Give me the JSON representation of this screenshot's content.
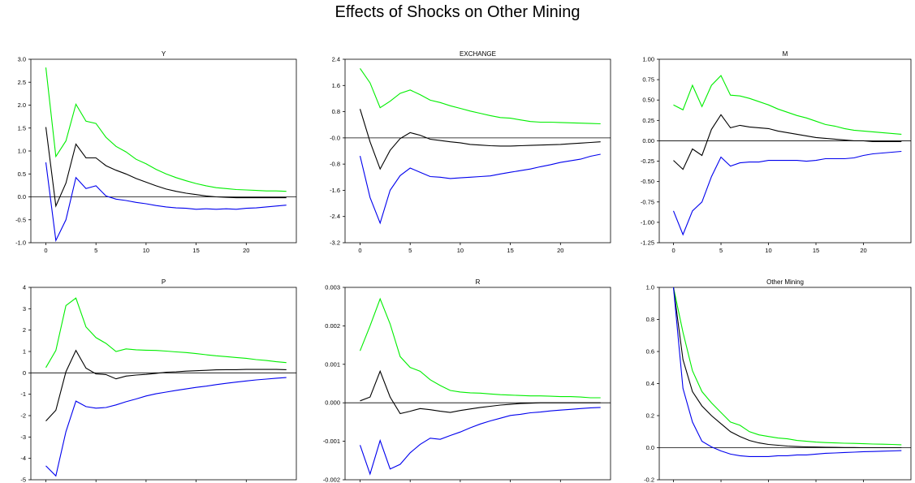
{
  "title": "Effects of Shocks on Other Mining",
  "chart_data": [
    {
      "type": "line",
      "title": "Y",
      "x": [
        0,
        1,
        2,
        3,
        4,
        5,
        6,
        7,
        8,
        9,
        10,
        11,
        12,
        13,
        14,
        15,
        16,
        17,
        18,
        19,
        20,
        21,
        22,
        23,
        24
      ],
      "xticks": [
        0,
        5,
        10,
        15,
        20
      ],
      "xlim": [
        -1.5,
        25
      ],
      "ylim": [
        -1.0,
        3.0
      ],
      "yticks": [
        -1.0,
        -0.5,
        0.0,
        0.5,
        1.0,
        1.5,
        2.0,
        2.5,
        3.0
      ],
      "ytick_labels": [
        "-1.0",
        "-0.5",
        "0.0",
        "0.5",
        "1.0",
        "1.5",
        "2.0",
        "2.5",
        "3.0"
      ],
      "zero_line": 0,
      "series": [
        {
          "color": "#00ee00",
          "values": [
            2.82,
            0.88,
            1.22,
            2.02,
            1.65,
            1.6,
            1.3,
            1.1,
            0.98,
            0.82,
            0.72,
            0.6,
            0.5,
            0.42,
            0.35,
            0.29,
            0.24,
            0.2,
            0.18,
            0.16,
            0.15,
            0.14,
            0.13,
            0.13,
            0.12
          ]
        },
        {
          "color": "#000000",
          "values": [
            1.52,
            -0.2,
            0.3,
            1.15,
            0.85,
            0.85,
            0.68,
            0.58,
            0.5,
            0.4,
            0.32,
            0.24,
            0.17,
            0.12,
            0.08,
            0.05,
            0.02,
            0.0,
            -0.01,
            -0.02,
            -0.02,
            -0.02,
            -0.02,
            -0.02,
            -0.02
          ]
        },
        {
          "color": "#0000ee",
          "values": [
            0.75,
            -0.95,
            -0.5,
            0.42,
            0.18,
            0.24,
            0.02,
            -0.05,
            -0.08,
            -0.12,
            -0.15,
            -0.19,
            -0.22,
            -0.24,
            -0.25,
            -0.27,
            -0.26,
            -0.27,
            -0.26,
            -0.27,
            -0.25,
            -0.24,
            -0.22,
            -0.2,
            -0.18
          ]
        }
      ]
    },
    {
      "type": "line",
      "title": "EXCHANGE",
      "x": [
        0,
        1,
        2,
        3,
        4,
        5,
        6,
        7,
        8,
        9,
        10,
        11,
        12,
        13,
        14,
        15,
        16,
        17,
        18,
        19,
        20,
        21,
        22,
        23,
        24
      ],
      "xticks": [
        0,
        5,
        10,
        15,
        20
      ],
      "xlim": [
        -1.5,
        25
      ],
      "ylim": [
        -3.2,
        2.4
      ],
      "yticks": [
        -3.2,
        -2.4,
        -1.6,
        -0.8,
        0.0,
        0.8,
        1.6,
        2.4
      ],
      "ytick_labels": [
        "-3.2",
        "-2.4",
        "-1.6",
        "-0.8",
        "-0.0",
        "0.8",
        "1.6",
        "2.4"
      ],
      "zero_line": 0,
      "series": [
        {
          "color": "#00ee00",
          "values": [
            2.12,
            1.68,
            0.92,
            1.12,
            1.36,
            1.46,
            1.32,
            1.15,
            1.08,
            0.98,
            0.9,
            0.82,
            0.75,
            0.68,
            0.62,
            0.6,
            0.55,
            0.5,
            0.48,
            0.48,
            0.47,
            0.46,
            0.45,
            0.44,
            0.43
          ]
        },
        {
          "color": "#000000",
          "values": [
            0.88,
            -0.12,
            -0.95,
            -0.38,
            -0.02,
            0.16,
            0.08,
            -0.04,
            -0.08,
            -0.12,
            -0.15,
            -0.2,
            -0.22,
            -0.24,
            -0.25,
            -0.25,
            -0.24,
            -0.23,
            -0.22,
            -0.21,
            -0.2,
            -0.18,
            -0.16,
            -0.14,
            -0.12
          ]
        },
        {
          "color": "#0000ee",
          "values": [
            -0.55,
            -1.82,
            -2.6,
            -1.6,
            -1.15,
            -0.92,
            -1.05,
            -1.18,
            -1.2,
            -1.24,
            -1.22,
            -1.2,
            -1.18,
            -1.16,
            -1.1,
            -1.05,
            -1.0,
            -0.95,
            -0.88,
            -0.82,
            -0.75,
            -0.7,
            -0.65,
            -0.56,
            -0.5
          ]
        }
      ]
    },
    {
      "type": "line",
      "title": "M",
      "x": [
        0,
        1,
        2,
        3,
        4,
        5,
        6,
        7,
        8,
        9,
        10,
        11,
        12,
        13,
        14,
        15,
        16,
        17,
        18,
        19,
        20,
        21,
        22,
        23,
        24
      ],
      "xticks": [
        0,
        5,
        10,
        15,
        20
      ],
      "xlim": [
        -1.5,
        25
      ],
      "ylim": [
        -1.25,
        1.0
      ],
      "yticks": [
        -1.25,
        -1.0,
        -0.75,
        -0.5,
        -0.25,
        0.0,
        0.25,
        0.5,
        0.75,
        1.0
      ],
      "ytick_labels": [
        "-1.25",
        "-1.00",
        "-0.75",
        "-0.50",
        "-0.25",
        "0.00",
        "0.25",
        "0.50",
        "0.75",
        "1.00"
      ],
      "zero_line": 0,
      "series": [
        {
          "color": "#00ee00",
          "values": [
            0.44,
            0.38,
            0.68,
            0.42,
            0.68,
            0.8,
            0.56,
            0.55,
            0.52,
            0.48,
            0.44,
            0.39,
            0.35,
            0.31,
            0.28,
            0.24,
            0.2,
            0.18,
            0.15,
            0.13,
            0.12,
            0.11,
            0.1,
            0.09,
            0.08
          ]
        },
        {
          "color": "#000000",
          "values": [
            -0.24,
            -0.35,
            -0.1,
            -0.18,
            0.14,
            0.32,
            0.16,
            0.19,
            0.17,
            0.16,
            0.15,
            0.12,
            0.1,
            0.08,
            0.06,
            0.04,
            0.03,
            0.02,
            0.01,
            0.0,
            0.0,
            -0.01,
            -0.01,
            -0.01,
            -0.01
          ]
        },
        {
          "color": "#0000ee",
          "values": [
            -0.86,
            -1.15,
            -0.86,
            -0.75,
            -0.44,
            -0.2,
            -0.31,
            -0.27,
            -0.26,
            -0.26,
            -0.24,
            -0.24,
            -0.24,
            -0.24,
            -0.25,
            -0.24,
            -0.22,
            -0.22,
            -0.22,
            -0.21,
            -0.18,
            -0.16,
            -0.15,
            -0.14,
            -0.13
          ]
        }
      ]
    },
    {
      "type": "line",
      "title": "P",
      "x": [
        0,
        1,
        2,
        3,
        4,
        5,
        6,
        7,
        8,
        9,
        10,
        11,
        12,
        13,
        14,
        15,
        16,
        17,
        18,
        19,
        20,
        21,
        22,
        23,
        24
      ],
      "xticks": [
        0,
        5,
        10,
        15,
        20
      ],
      "xlim": [
        -1.5,
        25
      ],
      "ylim": [
        -5,
        4
      ],
      "yticks": [
        -5,
        -4,
        -3,
        -2,
        -1,
        0,
        1,
        2,
        3,
        4
      ],
      "ytick_labels": [
        "-5",
        "-4",
        "-3",
        "-2",
        "-1",
        "0",
        "1",
        "2",
        "3",
        "4"
      ],
      "zero_line": 0,
      "series": [
        {
          "color": "#00ee00",
          "values": [
            0.25,
            1.05,
            3.15,
            3.5,
            2.15,
            1.65,
            1.38,
            1.0,
            1.12,
            1.08,
            1.06,
            1.05,
            1.02,
            0.98,
            0.95,
            0.9,
            0.85,
            0.8,
            0.76,
            0.72,
            0.68,
            0.62,
            0.58,
            0.52,
            0.48
          ]
        },
        {
          "color": "#000000",
          "values": [
            -2.25,
            -1.75,
            0.05,
            1.05,
            0.22,
            -0.05,
            -0.08,
            -0.28,
            -0.15,
            -0.1,
            -0.07,
            -0.02,
            0.03,
            0.05,
            0.08,
            0.1,
            0.12,
            0.14,
            0.15,
            0.15,
            0.16,
            0.16,
            0.16,
            0.16,
            0.15
          ]
        },
        {
          "color": "#0000ee",
          "values": [
            -4.35,
            -4.82,
            -2.75,
            -1.32,
            -1.58,
            -1.65,
            -1.62,
            -1.5,
            -1.35,
            -1.22,
            -1.08,
            -0.98,
            -0.9,
            -0.82,
            -0.75,
            -0.68,
            -0.62,
            -0.55,
            -0.49,
            -0.43,
            -0.38,
            -0.33,
            -0.29,
            -0.25,
            -0.22
          ]
        }
      ]
    },
    {
      "type": "line",
      "title": "R",
      "x": [
        0,
        1,
        2,
        3,
        4,
        5,
        6,
        7,
        8,
        9,
        10,
        11,
        12,
        13,
        14,
        15,
        16,
        17,
        18,
        19,
        20,
        21,
        22,
        23,
        24
      ],
      "xticks": [
        0,
        5,
        10,
        15,
        20
      ],
      "xlim": [
        -1.5,
        25
      ],
      "ylim": [
        -0.002,
        0.003
      ],
      "yticks": [
        -0.002,
        -0.001,
        0.0,
        0.001,
        0.002,
        0.003
      ],
      "ytick_labels": [
        "-0.002",
        "-0.001",
        "0.000",
        "0.001",
        "0.002",
        "0.003"
      ],
      "zero_line": 0,
      "series": [
        {
          "color": "#00ee00",
          "values": [
            0.00135,
            0.002,
            0.0027,
            0.00205,
            0.0012,
            0.00092,
            0.00082,
            0.0006,
            0.00045,
            0.00032,
            0.00028,
            0.00026,
            0.00025,
            0.00023,
            0.00021,
            0.0002,
            0.00019,
            0.00018,
            0.00018,
            0.00017,
            0.00016,
            0.00016,
            0.00015,
            0.00013,
            0.00013
          ]
        },
        {
          "color": "#000000",
          "values": [
            5e-05,
            0.00015,
            0.00082,
            0.00015,
            -0.00028,
            -0.00022,
            -0.00015,
            -0.00018,
            -0.00022,
            -0.00025,
            -0.0002,
            -0.00016,
            -0.00012,
            -9e-05,
            -6e-05,
            -4e-05,
            -2e-05,
            -1e-05,
            0.0,
            0.0,
            0.0,
            0.0,
            0.0,
            0.0,
            0.0
          ]
        },
        {
          "color": "#0000ee",
          "values": [
            -0.0011,
            -0.00185,
            -0.00098,
            -0.00172,
            -0.0016,
            -0.0013,
            -0.00108,
            -0.00092,
            -0.00095,
            -0.00085,
            -0.00076,
            -0.00065,
            -0.00055,
            -0.00047,
            -0.0004,
            -0.00033,
            -0.0003,
            -0.00026,
            -0.00024,
            -0.00021,
            -0.00019,
            -0.00017,
            -0.00015,
            -0.00013,
            -0.00012
          ]
        }
      ]
    },
    {
      "type": "line",
      "title": "Other Mining",
      "x": [
        0,
        1,
        2,
        3,
        4,
        5,
        6,
        7,
        8,
        9,
        10,
        11,
        12,
        13,
        14,
        15,
        16,
        17,
        18,
        19,
        20,
        21,
        22,
        23,
        24
      ],
      "xticks": [
        0,
        5,
        10,
        15,
        20
      ],
      "xlim": [
        -1.5,
        25
      ],
      "ylim": [
        -0.2,
        1.0
      ],
      "yticks": [
        -0.2,
        0.0,
        0.2,
        0.4,
        0.6,
        0.8,
        1.0
      ],
      "ytick_labels": [
        "-0.2",
        "0.0",
        "0.2",
        "0.4",
        "0.6",
        "0.8",
        "1.0"
      ],
      "zero_line": 0,
      "series": [
        {
          "color": "#00ee00",
          "values": [
            1.0,
            0.72,
            0.48,
            0.35,
            0.28,
            0.22,
            0.16,
            0.14,
            0.1,
            0.08,
            0.07,
            0.06,
            0.055,
            0.045,
            0.04,
            0.035,
            0.032,
            0.03,
            0.028,
            0.027,
            0.025,
            0.023,
            0.022,
            0.02,
            0.018
          ]
        },
        {
          "color": "#000000",
          "values": [
            1.0,
            0.55,
            0.35,
            0.26,
            0.2,
            0.15,
            0.1,
            0.07,
            0.045,
            0.03,
            0.02,
            0.015,
            0.01,
            0.007,
            0.005,
            0.004,
            0.003,
            0.002,
            0.001,
            0.001,
            0.0,
            0.0,
            0.0,
            0.0,
            0.0
          ]
        },
        {
          "color": "#0000ee",
          "values": [
            1.0,
            0.37,
            0.16,
            0.04,
            0.005,
            -0.02,
            -0.04,
            -0.05,
            -0.055,
            -0.055,
            -0.055,
            -0.05,
            -0.05,
            -0.045,
            -0.045,
            -0.04,
            -0.035,
            -0.033,
            -0.03,
            -0.028,
            -0.025,
            -0.024,
            -0.022,
            -0.02,
            -0.018
          ]
        }
      ]
    }
  ]
}
